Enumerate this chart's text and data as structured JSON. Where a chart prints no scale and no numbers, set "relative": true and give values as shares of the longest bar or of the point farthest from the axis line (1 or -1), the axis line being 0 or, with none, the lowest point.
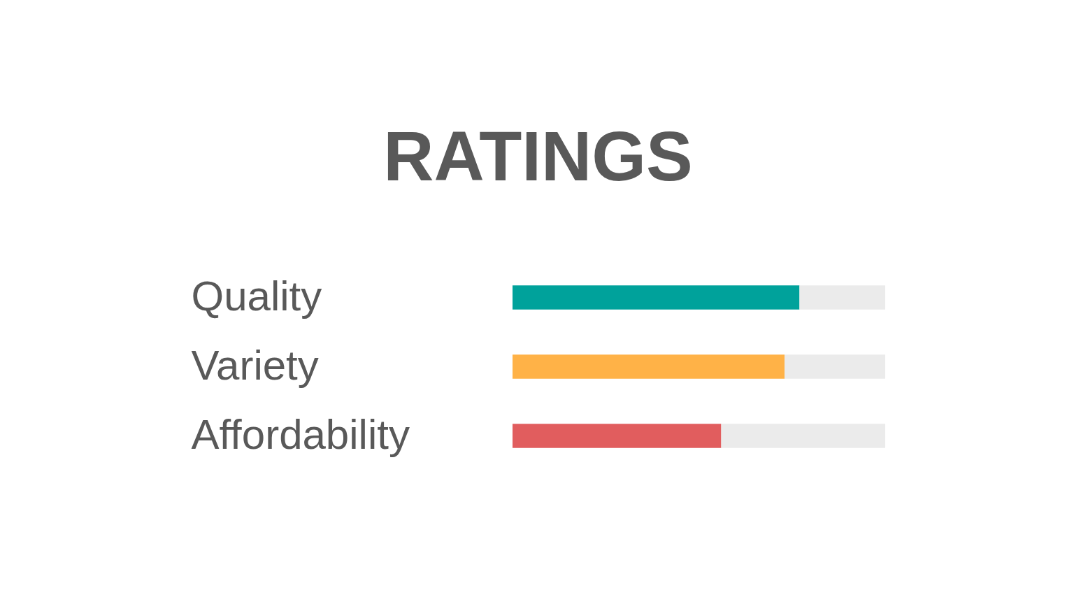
{
  "chart_data": {
    "type": "bar",
    "orientation": "horizontal",
    "stacked": true,
    "relative": true,
    "title": "RATINGS",
    "categories": [
      "Quality",
      "Variety",
      "Affordability"
    ],
    "series": [
      {
        "colors": [
          "#00a29b",
          "#ffb247",
          "#e15d5e"
        ],
        "values": [
          0.77,
          0.73,
          0.56
        ]
      },
      {
        "color": "#ebebeb",
        "values": [
          0.23,
          0.27,
          0.44
        ]
      }
    ]
  }
}
